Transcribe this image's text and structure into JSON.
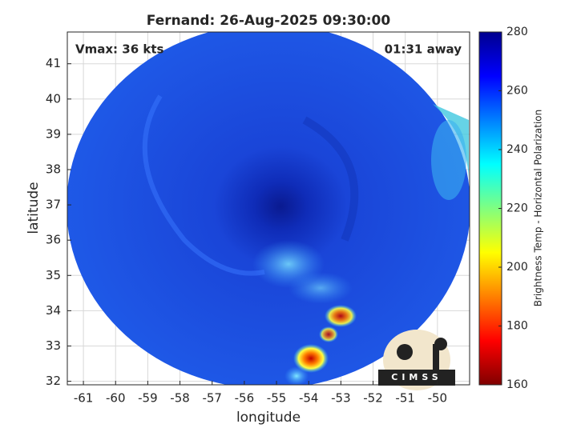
{
  "chart_data": {
    "type": "heatmap",
    "title": "Fernand: 26-Aug-2025 09:30:00",
    "annotations": [
      "Vmax: 36 kts",
      "01:31 away"
    ],
    "xlabel": "longitude",
    "ylabel": "latitude",
    "xlim": [
      -61.5,
      -49
    ],
    "xticks": [
      -61,
      -60,
      -59,
      -58,
      -57,
      -56,
      -55,
      -54,
      -53,
      -52,
      -51,
      -50
    ],
    "ylim": [
      31.9,
      41.9
    ],
    "yticks": [
      32,
      33,
      34,
      35,
      36,
      37,
      38,
      39,
      40,
      41
    ],
    "grid": true,
    "colorbar": {
      "label": "Brightness Temp - Horizontal Polarization",
      "lim": [
        160,
        280
      ],
      "ticks": [
        160,
        180,
        200,
        220,
        240,
        260,
        280
      ],
      "colors": [
        "#800000",
        "#ff0000",
        "#ff8000",
        "#ffff00",
        "#80ff80",
        "#00ffff",
        "#0080ff",
        "#0000ff",
        "#00008f"
      ]
    }
  },
  "logo": {
    "text": "CIMSS"
  }
}
